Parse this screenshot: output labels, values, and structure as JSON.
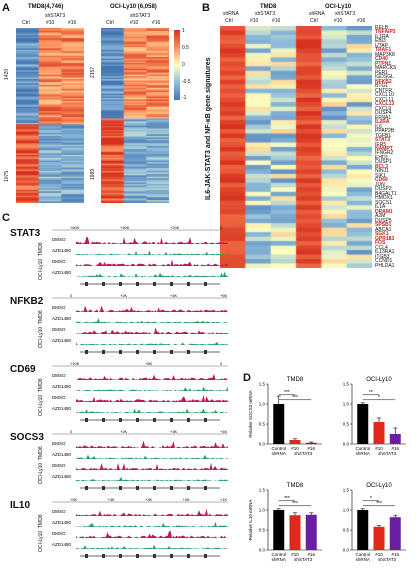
{
  "panelA": {
    "label": "A",
    "left": {
      "title": "TMD8(4,746)",
      "sh": "shSTAT3",
      "cols": [
        "Ctrl",
        "#10",
        "#16"
      ],
      "count_top": "1420",
      "count_bottom": "1075"
    },
    "right": {
      "title": "OCI-Ly10 (6,058)",
      "sh": "shSTAT3",
      "cols": [
        "Ctrl",
        "#10",
        "#16"
      ],
      "count_top": "2157",
      "count_bottom": "1989"
    },
    "scale": [
      "1",
      "0.5",
      "0",
      "-0.5",
      "-1"
    ]
  },
  "panelB": {
    "label": "B",
    "tmd8": "TMD8",
    "oci": "OCI-Ly10",
    "shrna": "shRNA",
    "sh": "shSTAT3",
    "cols": [
      "Ctrl",
      "#10",
      "#16",
      "Ctrl",
      "#10",
      "#16"
    ],
    "side_label": "IL6-JAK-STAT3 and NF-κB gene signatures",
    "genes": [
      {
        "name": "RELB",
        "hl": false
      },
      {
        "name": "TNFAIP3",
        "hl": true
      },
      {
        "name": "IL1RA",
        "hl": false
      },
      {
        "name": "EBI3",
        "hl": false
      },
      {
        "name": "UTAP",
        "hl": false
      },
      {
        "name": "TRAF1",
        "hl": true
      },
      {
        "name": "MAP3K8",
        "hl": false
      },
      {
        "name": "CD40",
        "hl": true
      },
      {
        "name": "PTPN1",
        "hl": true
      },
      {
        "name": "MARCKS",
        "hl": false
      },
      {
        "name": "PER1",
        "hl": false
      },
      {
        "name": "IGDSGL",
        "hl": false
      },
      {
        "name": "NFKB2",
        "hl": true
      },
      {
        "name": "BTG1",
        "hl": false
      },
      {
        "name": "CNTFR",
        "hl": false
      },
      {
        "name": "CXCL10",
        "hl": false
      },
      {
        "name": "CXCL11",
        "hl": false
      },
      {
        "name": "CXCL13",
        "hl": true
      },
      {
        "name": "CXCL9",
        "hl": false
      },
      {
        "name": "DUSP4",
        "hl": false
      },
      {
        "name": "EFNA1",
        "hl": false
      },
      {
        "name": "IL2RA",
        "hl": true
      },
      {
        "name": "IL6",
        "hl": false
      },
      {
        "name": "PPAP2B",
        "hl": false
      },
      {
        "name": "TGFB1",
        "hl": false
      },
      {
        "name": "STAT3",
        "hl": true
      },
      {
        "name": "IER5",
        "hl": false
      },
      {
        "name": "NAMPT",
        "hl": true
      },
      {
        "name": "IFNGR2",
        "hl": false
      },
      {
        "name": "EHD1",
        "hl": false
      },
      {
        "name": "DUSP1",
        "hl": false
      },
      {
        "name": "BCL3",
        "hl": true
      },
      {
        "name": "NINJ1",
        "hl": false
      },
      {
        "name": "SIK1",
        "hl": false
      },
      {
        "name": "CD69",
        "hl": true
      },
      {
        "name": "JUN",
        "hl": false
      },
      {
        "name": "DUSP2",
        "hl": false
      },
      {
        "name": "B4GALT1",
        "hl": false
      },
      {
        "name": "HMOX1",
        "hl": false
      },
      {
        "name": "SOCS1",
        "hl": false
      },
      {
        "name": "IL1A",
        "hl": false
      },
      {
        "name": "DRAM1",
        "hl": true
      },
      {
        "name": "A2M",
        "hl": false
      },
      {
        "name": "DUSP5",
        "hl": false
      },
      {
        "name": "SPSB1",
        "hl": true
      },
      {
        "name": "ABCA1",
        "hl": false
      },
      {
        "name": "SGK1",
        "hl": true
      },
      {
        "name": "GPR183",
        "hl": true
      },
      {
        "name": "FOS",
        "hl": true
      },
      {
        "name": "CCL4",
        "hl": false
      },
      {
        "name": "IL13RA1",
        "hl": false
      },
      {
        "name": "ITGB3",
        "hl": false
      },
      {
        "name": "CCND1",
        "hl": false
      },
      {
        "name": "PHLDA1",
        "hl": false
      }
    ]
  },
  "panelC": {
    "label": "C",
    "genes": [
      {
        "name": "STAT3",
        "scale": [
          "+60K",
          "+40K",
          "+20K",
          "0"
        ]
      },
      {
        "name": "NFKB2",
        "scale": [
          "0",
          "+2K",
          "+4K",
          "+6K"
        ]
      },
      {
        "name": "CD69",
        "scale": [
          "+10K",
          "+5K",
          "0"
        ]
      },
      {
        "name": "SOCS3",
        "scale": [
          "0",
          "+2K",
          "+3K",
          "+4K"
        ]
      },
      {
        "name": "IL10",
        "scale": [
          "+5K",
          "+4K",
          "+3K",
          "+2K",
          "+1K"
        ]
      }
    ],
    "cells": [
      "TMD8",
      "OCI-Ly10"
    ],
    "treat": [
      "DMSO",
      "AZD1480"
    ]
  },
  "panelD": {
    "label": "D",
    "charts_title_tmd8": "TMD8",
    "charts_title_oci": "OCI-Ly10",
    "ylabel_socs3": "Relative SOCS3 mRNA",
    "ylabel_il10": "Relative IL10 mRNA",
    "xlabels": {
      "control": "Control",
      "shrna": "shRNA",
      "n10": "#10",
      "n16": "#16",
      "sh": "shSTAT3"
    },
    "colors": {
      "control": "#000000",
      "n10": "#e0281c",
      "n16": "#6a1fa2"
    }
  },
  "chart_data": [
    {
      "type": "bar",
      "title": "TMD8",
      "ylabel": "Relative SOCS3 mRNA",
      "categories": [
        "Control shRNA",
        "#10",
        "#16"
      ],
      "values": [
        1.0,
        0.1,
        0.03
      ],
      "errors": [
        0.2,
        0.03,
        0.02
      ],
      "ylim": [
        0,
        1.5
      ],
      "yticks": [
        "0.0",
        "0.5",
        "1.0",
        "1.5"
      ],
      "sig": [
        "***",
        "***"
      ]
    },
    {
      "type": "bar",
      "title": "OCI-Ly10",
      "ylabel": "",
      "categories": [
        "Control shRNA",
        "#10",
        "#16"
      ],
      "values": [
        1.0,
        0.55,
        0.25
      ],
      "errors": [
        0.03,
        0.1,
        0.15
      ],
      "ylim": [
        0,
        1.5
      ],
      "yticks": [
        "0.0",
        "0.5",
        "1.0",
        "1.5"
      ],
      "sig": [
        "**",
        "*"
      ]
    },
    {
      "type": "bar",
      "title": "TMD8",
      "ylabel": "Relative IL10 mRNA",
      "categories": [
        "Control shRNA",
        "#10",
        "#16"
      ],
      "values": [
        1.0,
        0.87,
        0.88
      ],
      "errors": [
        0.03,
        0.06,
        0.05
      ],
      "ylim": [
        0,
        1.5
      ],
      "yticks": [
        "0.0",
        "0.5",
        "1.0",
        "1.5"
      ],
      "sig": [
        "***",
        "***"
      ]
    },
    {
      "type": "bar",
      "title": "OCI-Ly10",
      "ylabel": "",
      "categories": [
        "Control shRNA",
        "#10",
        "#16"
      ],
      "values": [
        1.0,
        0.58,
        0.82
      ],
      "errors": [
        0.03,
        0.03,
        0.05
      ],
      "ylim": [
        0,
        1.5
      ],
      "yticks": [
        "0.0",
        "0.5",
        "1.0",
        "1.5"
      ],
      "sig": [
        "*",
        "***"
      ]
    }
  ]
}
